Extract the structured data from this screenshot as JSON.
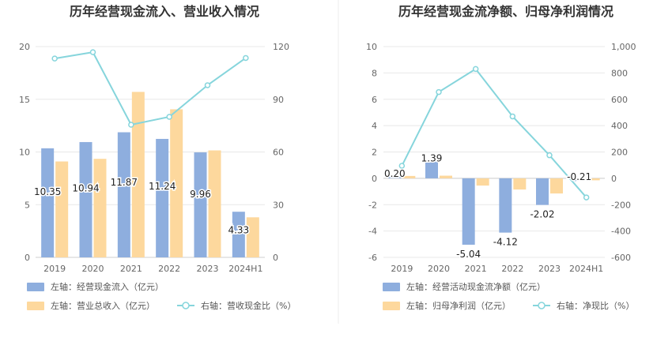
{
  "chart_data": [
    {
      "type": "bar",
      "title": "历年经营现金流入、营业收入情况",
      "categories": [
        "2019",
        "2020",
        "2021",
        "2022",
        "2023",
        "2024H1"
      ],
      "left_axis": {
        "ylim": [
          0,
          20
        ],
        "ticks": [
          "0",
          "5",
          "10",
          "15",
          "20"
        ]
      },
      "right_axis": {
        "ylim": [
          0,
          120
        ],
        "ticks": [
          "0",
          "30",
          "60",
          "90",
          "120"
        ]
      },
      "grid": true,
      "legend_position": "bottom-left",
      "series": [
        {
          "name": "左轴：经营现金流入（亿元）",
          "kind": "bar",
          "axis": "left",
          "color": "#8eaede",
          "values": [
            10.35,
            10.94,
            11.87,
            11.24,
            9.96,
            4.33
          ],
          "labels": [
            "10.35",
            "10.94",
            "11.87",
            "11.24",
            "9.96",
            "4.33"
          ]
        },
        {
          "name": "左轴：营业总收入（亿元）",
          "kind": "bar",
          "axis": "left",
          "color": "#fdd89d",
          "values": [
            9.1,
            9.35,
            15.7,
            14.05,
            10.15,
            3.8
          ]
        },
        {
          "name": "右轴：营收现金比（%）",
          "kind": "line",
          "axis": "right",
          "color": "#86d5dc",
          "values": [
            113.2,
            116.8,
            75.5,
            80.0,
            98.0,
            113.5
          ]
        }
      ]
    },
    {
      "type": "bar",
      "title": "历年经营现金流净额、归母净利润情况",
      "categories": [
        "2019",
        "2020",
        "2021",
        "2022",
        "2023",
        "2024H1"
      ],
      "left_axis": {
        "ylim": [
          -6,
          10
        ],
        "ticks": [
          "-6",
          "-4",
          "-2",
          "0",
          "2",
          "4",
          "6",
          "8",
          "10"
        ]
      },
      "right_axis": {
        "ylim": [
          -600,
          1000
        ],
        "ticks": [
          "-600",
          "-400",
          "-200",
          "0",
          "200",
          "400",
          "600",
          "800",
          "1,000"
        ]
      },
      "grid": true,
      "legend_position": "bottom-left",
      "series": [
        {
          "name": "左轴：经营活动现金流净额（亿元）",
          "kind": "bar",
          "axis": "left",
          "color": "#8eaede",
          "values": [
            0.2,
            1.39,
            -5.04,
            -4.12,
            -2.02,
            -0.21
          ],
          "labels": [
            "0.20",
            "1.39",
            "-5.04",
            "-4.12",
            "-2.02",
            "-0.21"
          ]
        },
        {
          "name": "左轴：归母净利润（亿元）",
          "kind": "bar",
          "axis": "left",
          "color": "#fdd89d",
          "values": [
            0.18,
            0.2,
            -0.55,
            -0.85,
            -1.15,
            -0.15
          ]
        },
        {
          "name": "右轴：净现比（%）",
          "kind": "line",
          "axis": "right",
          "color": "#86d5dc",
          "values": [
            95,
            655,
            830,
            470,
            175,
            -145
          ]
        }
      ]
    }
  ]
}
